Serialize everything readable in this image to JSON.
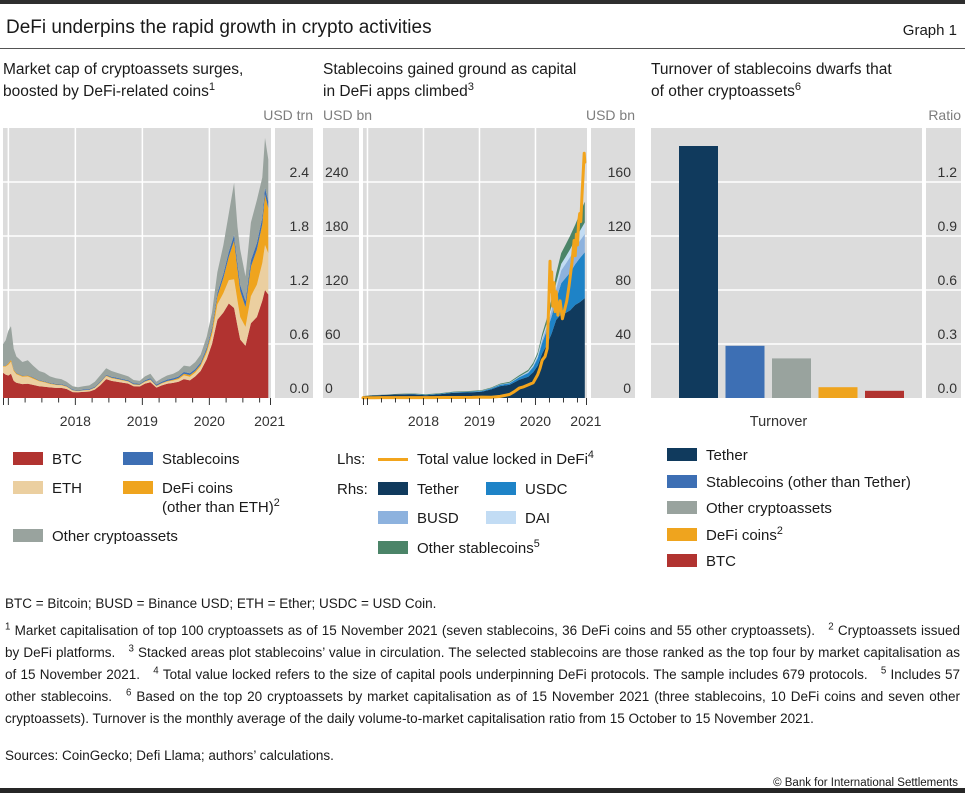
{
  "header": {
    "title": "DeFi underpins the rapid growth in crypto activities",
    "graph_label": "Graph 1"
  },
  "colors": {
    "plot_background": "#dcdcdc",
    "gridline": "#ffffff",
    "axis_text": "#333333",
    "unit_text": "#7d7d7d",
    "btc_red": "#b13330",
    "eth_tan": "#ebcfa0",
    "defi_orange": "#efa41e",
    "stablecoin_blue": "#3d6fb4",
    "other_gray": "#99a39e",
    "tether_navy": "#103a5d",
    "usdc_blue": "#1e83c7",
    "busd_blue": "#8db2de",
    "dai_blue": "#c2dcf4",
    "other_stablecoin_green": "#4b8468",
    "tvl_line_orange": "#f2a41c"
  },
  "chart_data": [
    {
      "id": "market_cap",
      "type": "area",
      "title_lines": [
        "Market cap of cryptoassets surges,",
        "boosted by DeFi-related coins"
      ],
      "title_sup": "1",
      "unit_right": "USD trn",
      "y_max": 3.0,
      "y_right_labels": [
        "2.4",
        "1.8",
        "1.2",
        "0.6",
        "0.0"
      ],
      "x_range": [
        2017.92,
        2021.92
      ],
      "x_years": [
        2018,
        2019,
        2020,
        2021
      ],
      "x": [
        2017.92,
        2017.96,
        2018.0,
        2018.04,
        2018.08,
        2018.12,
        2018.21,
        2018.29,
        2018.37,
        2018.46,
        2018.54,
        2018.62,
        2018.71,
        2018.79,
        2018.87,
        2018.96,
        2019.04,
        2019.12,
        2019.21,
        2019.29,
        2019.37,
        2019.46,
        2019.54,
        2019.62,
        2019.71,
        2019.79,
        2019.87,
        2019.96,
        2020.04,
        2020.12,
        2020.21,
        2020.29,
        2020.37,
        2020.46,
        2020.54,
        2020.62,
        2020.71,
        2020.79,
        2020.87,
        2020.96,
        2021.04,
        2021.12,
        2021.21,
        2021.29,
        2021.37,
        2021.42,
        2021.46,
        2021.54,
        2021.62,
        2021.71,
        2021.79,
        2021.83,
        2021.88
      ],
      "series": [
        {
          "name": "BTC",
          "color": "#b13330",
          "values": [
            0.28,
            0.26,
            0.25,
            0.27,
            0.19,
            0.17,
            0.155,
            0.158,
            0.145,
            0.13,
            0.125,
            0.118,
            0.112,
            0.112,
            0.1,
            0.066,
            0.063,
            0.068,
            0.072,
            0.093,
            0.14,
            0.21,
            0.19,
            0.18,
            0.17,
            0.16,
            0.13,
            0.128,
            0.16,
            0.175,
            0.115,
            0.14,
            0.158,
            0.168,
            0.18,
            0.21,
            0.195,
            0.24,
            0.3,
            0.43,
            0.6,
            0.87,
            0.95,
            1.05,
            1.0,
            0.8,
            0.65,
            0.58,
            0.83,
            0.9,
            1.08,
            1.2,
            1.15
          ]
        },
        {
          "name": "ETH",
          "color": "#ebcfa0",
          "values": [
            0.07,
            0.09,
            0.12,
            0.135,
            0.11,
            0.095,
            0.08,
            0.082,
            0.07,
            0.055,
            0.048,
            0.038,
            0.032,
            0.03,
            0.026,
            0.017,
            0.014,
            0.015,
            0.016,
            0.019,
            0.027,
            0.033,
            0.03,
            0.028,
            0.024,
            0.022,
            0.018,
            0.016,
            0.02,
            0.025,
            0.016,
            0.021,
            0.024,
            0.026,
            0.03,
            0.042,
            0.041,
            0.043,
            0.052,
            0.075,
            0.105,
            0.17,
            0.215,
            0.26,
            0.32,
            0.28,
            0.25,
            0.21,
            0.3,
            0.36,
            0.42,
            0.5,
            0.46
          ]
        },
        {
          "name": "DeFi coins (other than ETH)",
          "color": "#efa41e",
          "values": [
            0.006,
            0.008,
            0.015,
            0.02,
            0.013,
            0.011,
            0.01,
            0.01,
            0.009,
            0.008,
            0.007,
            0.006,
            0.006,
            0.005,
            0.005,
            0.004,
            0.004,
            0.004,
            0.004,
            0.005,
            0.006,
            0.007,
            0.007,
            0.006,
            0.006,
            0.005,
            0.005,
            0.005,
            0.006,
            0.007,
            0.005,
            0.006,
            0.007,
            0.009,
            0.012,
            0.018,
            0.02,
            0.018,
            0.02,
            0.028,
            0.045,
            0.09,
            0.17,
            0.26,
            0.43,
            0.35,
            0.29,
            0.22,
            0.33,
            0.39,
            0.43,
            0.56,
            0.5
          ]
        },
        {
          "name": "Stablecoins",
          "color": "#3d6fb4",
          "values": [
            0.003,
            0.003,
            0.004,
            0.004,
            0.005,
            0.005,
            0.005,
            0.005,
            0.006,
            0.006,
            0.006,
            0.006,
            0.007,
            0.007,
            0.007,
            0.007,
            0.007,
            0.007,
            0.008,
            0.008,
            0.009,
            0.009,
            0.01,
            0.01,
            0.01,
            0.01,
            0.01,
            0.01,
            0.011,
            0.012,
            0.013,
            0.014,
            0.015,
            0.016,
            0.017,
            0.019,
            0.02,
            0.021,
            0.022,
            0.026,
            0.03,
            0.038,
            0.046,
            0.055,
            0.062,
            0.064,
            0.066,
            0.068,
            0.07,
            0.072,
            0.074,
            0.076,
            0.077
          ]
        },
        {
          "name": "Other cryptoassets",
          "color": "#99a39e",
          "values": [
            0.24,
            0.28,
            0.36,
            0.37,
            0.23,
            0.18,
            0.15,
            0.165,
            0.13,
            0.101,
            0.094,
            0.072,
            0.063,
            0.056,
            0.042,
            0.036,
            0.032,
            0.036,
            0.04,
            0.055,
            0.068,
            0.071,
            0.063,
            0.056,
            0.05,
            0.043,
            0.037,
            0.031,
            0.043,
            0.051,
            0.031,
            0.039,
            0.046,
            0.051,
            0.061,
            0.071,
            0.074,
            0.078,
            0.086,
            0.121,
            0.17,
            0.232,
            0.319,
            0.425,
            0.578,
            0.406,
            0.394,
            0.272,
            0.42,
            0.478,
            0.446,
            0.554,
            0.463
          ]
        }
      ],
      "legend": [
        {
          "label": "BTC",
          "color": "#b13330"
        },
        {
          "label": "Stablecoins",
          "color": "#3d6fb4"
        },
        {
          "label": "ETH",
          "color": "#ebcfa0"
        },
        {
          "label": "DeFi coins",
          "label2": "(other than ETH)",
          "sup2": "2",
          "color": "#efa41e"
        },
        {
          "label": "Other cryptoassets",
          "color": "#99a39e"
        }
      ]
    },
    {
      "id": "stablecoins",
      "type": "area+line",
      "title_lines": [
        "Stablecoins gained ground as capital",
        "in DeFi apps climbed"
      ],
      "title_sup": "3",
      "unit_left": "USD bn",
      "unit_right": "USD bn",
      "y_left_max": 300,
      "y_right_max": 200,
      "y_left_labels": [
        "240",
        "180",
        "120",
        "60",
        "0"
      ],
      "y_right_labels": [
        "160",
        "120",
        "80",
        "40",
        "0"
      ],
      "x_range": [
        2017.92,
        2021.92
      ],
      "x_years": [
        2018,
        2019,
        2020,
        2021
      ],
      "x": [
        2017.92,
        2018.04,
        2018.29,
        2018.54,
        2018.79,
        2019.04,
        2019.29,
        2019.54,
        2019.79,
        2020.04,
        2020.21,
        2020.37,
        2020.54,
        2020.71,
        2020.87,
        2020.96,
        2021.04,
        2021.12,
        2021.21,
        2021.29,
        2021.37,
        2021.46,
        2021.54,
        2021.62,
        2021.71,
        2021.79,
        2021.88
      ],
      "series": [
        {
          "name": "Tether",
          "color": "#103a5d",
          "values": [
            1.3,
            1.8,
            2.3,
            2.7,
            2.8,
            2.0,
            2.8,
            3.9,
            4.1,
            4.7,
            6.4,
            8.8,
            9.8,
            13.5,
            15.7,
            19,
            24,
            33,
            40,
            48,
            58,
            62,
            63,
            65,
            69,
            71,
            74
          ]
        },
        {
          "name": "USDC",
          "color": "#1e83c7",
          "values": [
            0,
            0,
            0,
            0,
            0.25,
            0.35,
            0.3,
            0.4,
            0.45,
            0.52,
            0.7,
            1.0,
            1.1,
            1.8,
            2.8,
            3.9,
            5.5,
            8,
            10.5,
            12.5,
            15,
            23,
            26,
            28,
            30,
            32.5,
            34
          ]
        },
        {
          "name": "BUSD",
          "color": "#8db2de",
          "values": [
            0,
            0,
            0,
            0,
            0,
            0,
            0,
            0,
            0.02,
            0.05,
            0.1,
            0.15,
            0.2,
            0.3,
            0.6,
            0.8,
            1.2,
            2.2,
            3.3,
            5.0,
            8.0,
            9.5,
            10.5,
            11.5,
            12,
            12.8,
            13.5
          ]
        },
        {
          "name": "DAI",
          "color": "#c2dcf4",
          "values": [
            0,
            0,
            0.05,
            0.06,
            0.07,
            0.08,
            0.09,
            0.1,
            0.12,
            0.12,
            0.1,
            0.12,
            0.2,
            0.35,
            0.6,
            1.0,
            1.3,
            1.8,
            2.5,
            3.3,
            4.3,
            4.8,
            5.2,
            5.8,
            6.3,
            7.2,
            8.5
          ]
        },
        {
          "name": "Other stablecoins",
          "color": "#4b8468",
          "values": [
            0.1,
            0.15,
            0.2,
            0.25,
            0.3,
            0.3,
            0.3,
            0.35,
            0.4,
            0.45,
            0.5,
            0.6,
            0.7,
            0.9,
            1.1,
            1.4,
            1.8,
            2.6,
            3.5,
            5.0,
            7.0,
            8.0,
            9.0,
            10.0,
            11.0,
            13.0,
            15.5
          ]
        }
      ],
      "line": {
        "name": "Total value locked in DeFi",
        "sup": "4",
        "color": "#f2a41c",
        "axis": "left",
        "x": [
          2017.92,
          2018.12,
          2018.37,
          2018.62,
          2018.87,
          2019.12,
          2019.37,
          2019.62,
          2019.87,
          2020.04,
          2020.21,
          2020.37,
          2020.54,
          2020.62,
          2020.71,
          2020.79,
          2020.87,
          2020.96,
          2021.04,
          2021.08,
          2021.12,
          2021.17,
          2021.21,
          2021.24,
          2021.26,
          2021.27,
          2021.29,
          2021.31,
          2021.33,
          2021.35,
          2021.37,
          2021.4,
          2021.44,
          2021.48,
          2021.52,
          2021.56,
          2021.6,
          2021.65,
          2021.69,
          2021.71,
          2021.73,
          2021.75,
          2021.77,
          2021.79,
          2021.81,
          2021.83,
          2021.85,
          2021.87,
          2021.88
        ],
        "values": [
          0.2,
          0.3,
          0.5,
          0.4,
          0.45,
          0.5,
          0.55,
          0.6,
          0.7,
          1.0,
          0.9,
          1.8,
          4.0,
          7.0,
          11.0,
          12.5,
          14.5,
          17,
          26,
          33,
          42,
          46,
          55,
          110,
          152,
          118,
          140,
          102,
          128,
          96,
          118,
          92,
          108,
          88,
          98,
          108,
          125,
          150,
          175,
          158,
          182,
          170,
          195,
          205,
          196,
          225,
          248,
          272,
          262
        ]
      },
      "legend": {
        "lhs_prefix": "Lhs:",
        "rhs_prefix": "Rhs:",
        "lhs": [
          {
            "label": "Total value locked in DeFi",
            "sup": "4",
            "color": "#f2a41c",
            "swatch": "line"
          }
        ],
        "rhs": [
          {
            "label": "Tether",
            "color": "#103a5d"
          },
          {
            "label": "USDC",
            "color": "#1e83c7"
          },
          {
            "label": "BUSD",
            "color": "#8db2de"
          },
          {
            "label": "DAI",
            "color": "#c2dcf4"
          },
          {
            "label": "Other stablecoins",
            "sup": "5",
            "color": "#4b8468"
          }
        ]
      }
    },
    {
      "id": "turnover",
      "type": "bar",
      "title_lines": [
        "Turnover of stablecoins dwarfs that",
        "of other cryptoassets"
      ],
      "title_sup": "6",
      "unit_right": "Ratio",
      "y_max": 1.5,
      "y_right_labels": [
        "1.2",
        "0.9",
        "0.6",
        "0.3",
        "0.0"
      ],
      "xlabel": "Turnover",
      "bars": [
        {
          "label": "Tether",
          "value": 1.4,
          "color": "#103a5d"
        },
        {
          "label": "Stablecoins (other than Tether)",
          "value": 0.29,
          "color": "#3d6fb4"
        },
        {
          "label": "Other cryptoassets",
          "value": 0.22,
          "color": "#99a39e"
        },
        {
          "label": "DeFi coins",
          "sup": "2",
          "value": 0.06,
          "color": "#efa41e"
        },
        {
          "label": "BTC",
          "value": 0.04,
          "color": "#b13330"
        }
      ],
      "legend": [
        {
          "label": "Tether",
          "color": "#103a5d"
        },
        {
          "label": "Stablecoins (other than Tether)",
          "color": "#3d6fb4"
        },
        {
          "label": "Other cryptoassets",
          "color": "#99a39e"
        },
        {
          "label": "DeFi coins",
          "sup": "2",
          "color": "#efa41e"
        },
        {
          "label": "BTC",
          "color": "#b13330"
        }
      ]
    }
  ],
  "footer": {
    "abbreviations": "BTC = Bitcoin; BUSD = Binance USD; ETH = Ether; USDC = USD Coin.",
    "footnotes": [
      {
        "n": "1",
        "text": "Market capitalisation of top 100 cryptoassets as of 15 November 2021 (seven stablecoins, 36 DeFi coins and 55 other cryptoassets)."
      },
      {
        "n": "2",
        "text": "Cryptoassets issued by DeFi platforms."
      },
      {
        "n": "3",
        "text": "Stacked areas plot stablecoins’ value in circulation. The selected stablecoins are those ranked as the top four by market capitalisation as of 15 November 2021."
      },
      {
        "n": "4",
        "text": "Total value locked refers to the size of capital pools underpinning DeFi protocols. The sample includes 679 protocols."
      },
      {
        "n": "5",
        "text": "Includes 57 other stablecoins."
      },
      {
        "n": "6",
        "text": "Based on the top 20 cryptoassets by market capitalisation as of 15 November 2021 (three stablecoins, 10 DeFi coins and seven other cryptoassets). Turnover is the monthly average of the daily volume-to-market capitalisation ratio from 15 October to 15 November 2021."
      }
    ],
    "sources": "Sources: CoinGecko; Defi Llama; authors’ calculations.",
    "copyright": "© Bank for International Settlements"
  }
}
